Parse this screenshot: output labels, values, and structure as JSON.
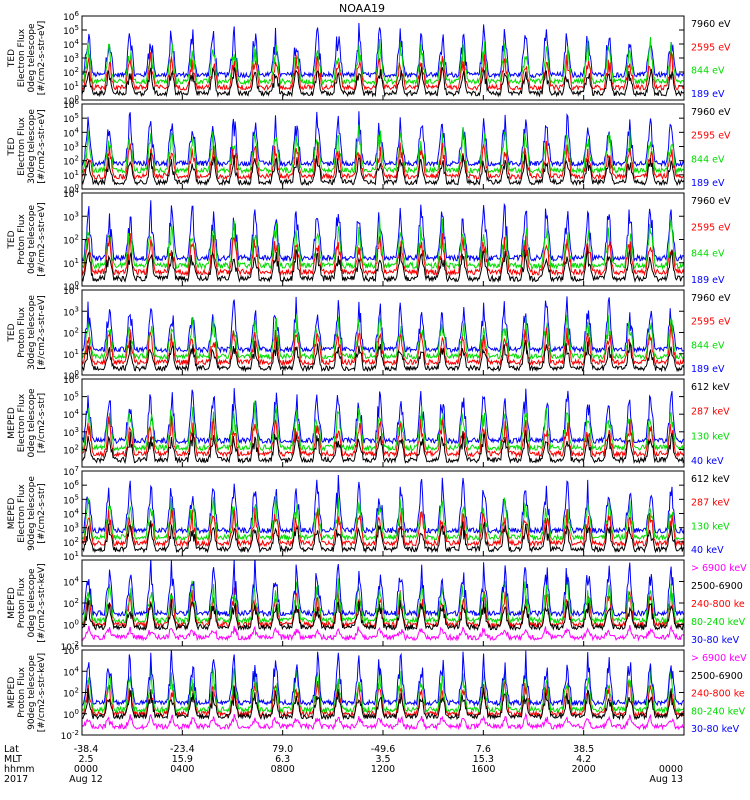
{
  "title": "NOAA19",
  "colors": {
    "black": "#000000",
    "red": "#ff0000",
    "green": "#00dd00",
    "blue": "#0000ff",
    "magenta": "#ff00ff",
    "grid": "#000000"
  },
  "chart_data": [
    {
      "type": "line",
      "ylabel": [
        "TED",
        "Electron Flux",
        "0deg telescope",
        "[#/cm2-s-str-eV]"
      ],
      "y_log": true,
      "ylim_exp": [
        0,
        6
      ],
      "y_ticks": [
        {
          "e": 0,
          "label": "10^0"
        },
        {
          "e": 1,
          "label": "10^1"
        },
        {
          "e": 2,
          "label": "10^2"
        },
        {
          "e": 3,
          "label": "10^3"
        },
        {
          "e": 4,
          "label": "10^4"
        },
        {
          "e": 5,
          "label": "10^5"
        },
        {
          "e": 6,
          "label": "10^6"
        }
      ],
      "legend": [
        {
          "name": "7960 eV",
          "color": "black"
        },
        {
          "name": "2595 eV",
          "color": "red"
        },
        {
          "name": "844 eV",
          "color": "green"
        },
        {
          "name": "189 eV",
          "color": "blue"
        }
      ]
    },
    {
      "type": "line",
      "ylabel": [
        "TED",
        "Electron Flux",
        "30deg telescope",
        "[#/cm2-s-str-eV]"
      ],
      "y_log": true,
      "ylim_exp": [
        0,
        6
      ],
      "y_ticks": [
        {
          "e": 0,
          "label": "10^0"
        },
        {
          "e": 1,
          "label": "10^1"
        },
        {
          "e": 2,
          "label": "10^2"
        },
        {
          "e": 3,
          "label": "10^3"
        },
        {
          "e": 4,
          "label": "10^4"
        },
        {
          "e": 5,
          "label": "10^5"
        },
        {
          "e": 6,
          "label": "10^6"
        }
      ],
      "legend": [
        {
          "name": "7960 eV",
          "color": "black"
        },
        {
          "name": "2595 eV",
          "color": "red"
        },
        {
          "name": "844 eV",
          "color": "green"
        },
        {
          "name": "189 eV",
          "color": "blue"
        }
      ]
    },
    {
      "type": "line",
      "ylabel": [
        "TED",
        "Proton Flux",
        "0deg telescope",
        "[#/cm2-s-str-eV]"
      ],
      "y_log": true,
      "ylim_exp": [
        0,
        4
      ],
      "y_ticks": [
        {
          "e": 0,
          "label": "10^0"
        },
        {
          "e": 1,
          "label": "10^1"
        },
        {
          "e": 2,
          "label": "10^2"
        },
        {
          "e": 3,
          "label": "10^3"
        },
        {
          "e": 4,
          "label": "10^4"
        }
      ],
      "legend": [
        {
          "name": "7960 eV",
          "color": "black"
        },
        {
          "name": "2595 eV",
          "color": "red"
        },
        {
          "name": "844 eV",
          "color": "green"
        },
        {
          "name": "189 eV",
          "color": "blue"
        }
      ]
    },
    {
      "type": "line",
      "ylabel": [
        "TED",
        "Proton Flux",
        "30deg telescope",
        "[#/cm2-s-str-eV]"
      ],
      "y_log": true,
      "ylim_exp": [
        0,
        4
      ],
      "y_ticks": [
        {
          "e": 0,
          "label": "10^0"
        },
        {
          "e": 1,
          "label": "10^1"
        },
        {
          "e": 2,
          "label": "10^2"
        },
        {
          "e": 3,
          "label": "10^3"
        },
        {
          "e": 4,
          "label": "10^4"
        }
      ],
      "legend": [
        {
          "name": "7960 eV",
          "color": "black"
        },
        {
          "name": "2595 eV",
          "color": "red"
        },
        {
          "name": "844 eV",
          "color": "green"
        },
        {
          "name": "189 eV",
          "color": "blue"
        }
      ]
    },
    {
      "type": "line",
      "ylabel": [
        "MEPED",
        "Electron Flux",
        "0deg telescope",
        "[#/cm2-s-str]"
      ],
      "y_log": true,
      "ylim_exp": [
        1,
        6
      ],
      "y_ticks": [
        {
          "e": 2,
          "label": "10^2"
        },
        {
          "e": 3,
          "label": "10^3"
        },
        {
          "e": 4,
          "label": "10^4"
        },
        {
          "e": 5,
          "label": "10^5"
        },
        {
          "e": 6,
          "label": "10^6"
        }
      ],
      "legend": [
        {
          "name": "612 keV",
          "color": "black"
        },
        {
          "name": "287 keV",
          "color": "red"
        },
        {
          "name": "130 keV",
          "color": "green"
        },
        {
          "name": "40 keV",
          "color": "blue"
        }
      ]
    },
    {
      "type": "line",
      "ylabel": [
        "MEPED",
        "Electron Flux",
        "90deg telescope",
        "[#/cm2-s-str]"
      ],
      "y_log": true,
      "ylim_exp": [
        1,
        7
      ],
      "y_ticks": [
        {
          "e": 1,
          "label": "10^1"
        },
        {
          "e": 2,
          "label": "10^2"
        },
        {
          "e": 3,
          "label": "10^3"
        },
        {
          "e": 4,
          "label": "10^4"
        },
        {
          "e": 5,
          "label": "10^5"
        },
        {
          "e": 6,
          "label": "10^6"
        },
        {
          "e": 7,
          "label": "10^7"
        }
      ],
      "legend": [
        {
          "name": "612 keV",
          "color": "black"
        },
        {
          "name": "287 keV",
          "color": "red"
        },
        {
          "name": "130 keV",
          "color": "green"
        },
        {
          "name": "40 keV",
          "color": "blue"
        }
      ]
    },
    {
      "type": "line",
      "ylabel": [
        "MEPED",
        "Proton Flux",
        "0deg telescope",
        "[#/cm2-s-str-keV]"
      ],
      "y_log": true,
      "ylim_exp": [
        -2,
        6
      ],
      "y_ticks": [
        {
          "e": -2,
          "label": "10^-2"
        },
        {
          "e": 0,
          "label": "10^0"
        },
        {
          "e": 2,
          "label": "10^2"
        },
        {
          "e": 4,
          "label": "10^4"
        }
      ],
      "legend": [
        {
          "name": "> 6900 keV",
          "color": "magenta"
        },
        {
          "name": "2500-6900",
          "color": "black"
        },
        {
          "name": "240-800 ke",
          "color": "red"
        },
        {
          "name": "80-240 keV",
          "color": "green"
        },
        {
          "name": "30-80 keV",
          "color": "blue"
        }
      ]
    },
    {
      "type": "line",
      "ylabel": [
        "MEPED",
        "Proton Flux",
        "90deg telescope",
        "[#/cm2-s-str-keV]"
      ],
      "y_log": true,
      "ylim_exp": [
        -2,
        6
      ],
      "y_ticks": [
        {
          "e": -2,
          "label": "10^-2"
        },
        {
          "e": 0,
          "label": "10^0"
        },
        {
          "e": 2,
          "label": "10^2"
        },
        {
          "e": 4,
          "label": "10^4"
        },
        {
          "e": 6,
          "label": "10^6"
        }
      ],
      "legend": [
        {
          "name": "> 6900 keV",
          "color": "magenta"
        },
        {
          "name": "2500-6900",
          "color": "black"
        },
        {
          "name": "240-800 ke",
          "color": "red"
        },
        {
          "name": "80-240 keV",
          "color": "green"
        },
        {
          "name": "30-80 keV",
          "color": "blue"
        }
      ]
    }
  ],
  "x_axis": {
    "row_labels": [
      "Lat",
      "MLT",
      "hhmm",
      "2017"
    ],
    "ticks": [
      {
        "hours": 0,
        "lat": "-38.4",
        "mlt": "2.5",
        "hhmm": "0000",
        "date": "Aug 12"
      },
      {
        "hours": 4,
        "lat": "-23.4",
        "mlt": "15.9",
        "hhmm": "0400",
        "date": ""
      },
      {
        "hours": 8,
        "lat": "79.0",
        "mlt": "6.3",
        "hhmm": "0800",
        "date": ""
      },
      {
        "hours": 12,
        "lat": "-49.6",
        "mlt": "3.5",
        "hhmm": "1200",
        "date": ""
      },
      {
        "hours": 16,
        "lat": "7.6",
        "mlt": "15.3",
        "hhmm": "1600",
        "date": ""
      },
      {
        "hours": 20,
        "lat": "38.5",
        "mlt": "4.2",
        "hhmm": "2000",
        "date": ""
      },
      {
        "hours": 24,
        "lat": "",
        "mlt": "",
        "hhmm": "0000",
        "date": "Aug 13"
      }
    ]
  }
}
